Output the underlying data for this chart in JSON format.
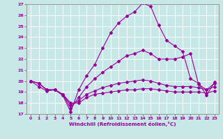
{
  "xlabel": "Windchill (Refroidissement éolien,°C)",
  "xlim": [
    -0.5,
    23.5
  ],
  "ylim": [
    17,
    27
  ],
  "background_color": "#c8e8e8",
  "grid_color": "#b0d0d0",
  "line_color": "#990099",
  "lines": [
    {
      "x": [
        0,
        1,
        2,
        3,
        4,
        5,
        6,
        7,
        8,
        9,
        10,
        11,
        12,
        13,
        14,
        15,
        16,
        17,
        18,
        19,
        20,
        21,
        22,
        23
      ],
      "y": [
        20,
        19.8,
        19.2,
        19.2,
        18.7,
        17.2,
        19.2,
        20.5,
        21.5,
        23.0,
        24.4,
        25.3,
        25.9,
        26.3,
        27.1,
        26.8,
        25.1,
        23.7,
        23.2,
        22.7,
        20.2,
        19.8,
        18.7,
        19.9
      ]
    },
    {
      "x": [
        0,
        1,
        2,
        3,
        4,
        5,
        6,
        7,
        8,
        9,
        10,
        11,
        12,
        13,
        14,
        15,
        16,
        17,
        18,
        19,
        20,
        21,
        22,
        23
      ],
      "y": [
        20,
        19.8,
        19.2,
        19.2,
        18.8,
        17.5,
        18.5,
        19.5,
        20.2,
        20.8,
        21.3,
        21.8,
        22.3,
        22.5,
        22.8,
        22.5,
        22.0,
        22.0,
        22.0,
        22.2,
        22.5,
        19.7,
        19.2,
        19.8
      ]
    },
    {
      "x": [
        0,
        1,
        2,
        3,
        4,
        5,
        6,
        7,
        8,
        9,
        10,
        11,
        12,
        13,
        14,
        15,
        16,
        17,
        18,
        19,
        20,
        21,
        22,
        23
      ],
      "y": [
        20,
        19.8,
        19.2,
        19.2,
        18.8,
        17.8,
        18.2,
        18.8,
        19.1,
        19.4,
        19.6,
        19.8,
        19.9,
        20.0,
        20.1,
        20.0,
        19.8,
        19.6,
        19.5,
        19.5,
        19.5,
        19.4,
        19.2,
        19.5
      ]
    },
    {
      "x": [
        0,
        1,
        2,
        3,
        4,
        5,
        6,
        7,
        8,
        9,
        10,
        11,
        12,
        13,
        14,
        15,
        16,
        17,
        18,
        19,
        20,
        21,
        22,
        23
      ],
      "y": [
        20,
        19.5,
        19.1,
        19.2,
        18.8,
        18.0,
        18.0,
        18.5,
        18.8,
        18.9,
        19.0,
        19.1,
        19.2,
        19.2,
        19.3,
        19.3,
        19.2,
        19.1,
        19.0,
        19.0,
        19.0,
        19.0,
        18.9,
        19.1
      ]
    }
  ]
}
